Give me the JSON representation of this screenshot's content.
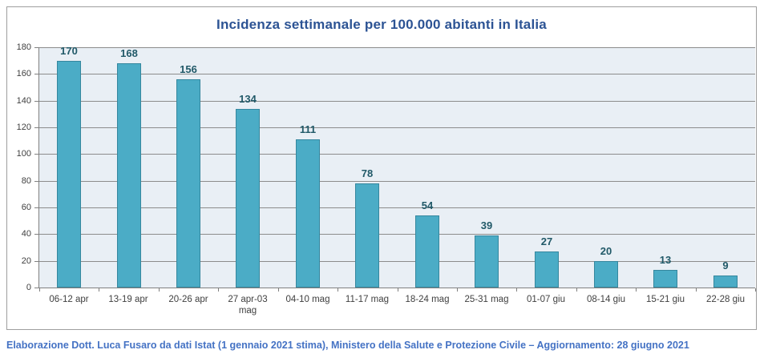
{
  "chart_data": {
    "type": "bar",
    "title": "Incidenza settimanale per 100.000 abitanti in Italia",
    "categories": [
      "06-12 apr",
      "13-19 apr",
      "20-26 apr",
      "27 apr-03 mag",
      "04-10 mag",
      "11-17 mag",
      "18-24 mag",
      "25-31 mag",
      "01-07 giu",
      "08-14 giu",
      "15-21 giu",
      "22-28 giu"
    ],
    "values": [
      170,
      168,
      156,
      134,
      111,
      78,
      54,
      39,
      27,
      20,
      13,
      9
    ],
    "xlabel": "",
    "ylabel": "",
    "ylim": [
      0,
      180
    ],
    "ytick_step": 20,
    "grid": true,
    "legend": "none",
    "colors": {
      "bar_fill": "#4bacc6",
      "bar_border": "#35879e",
      "value_label": "#215968",
      "plot_bg": "#e9eff5",
      "gridline": "#8c8c8c",
      "axis_line": "#808080",
      "tick_label": "#404040",
      "title": "#2c5394"
    }
  },
  "footer": {
    "text": "Elaborazione Dott. Luca Fusaro da dati Istat (1 gennaio 2021 stima), Ministero della Salute e Protezione Civile – Aggiornamento: 28 giugno 2021",
    "color": "#4472c4"
  }
}
